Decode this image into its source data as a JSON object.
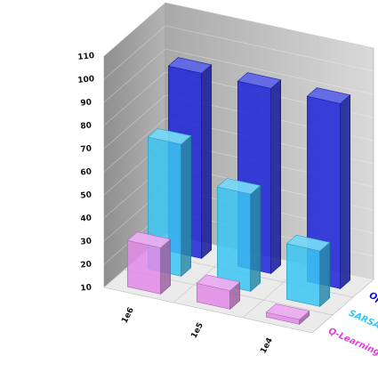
{
  "chart_data": {
    "type": "bar",
    "title": "",
    "xlabel": "",
    "ylabel": "",
    "ylim": [
      10,
      110
    ],
    "yticks": [
      10,
      20,
      30,
      40,
      50,
      60,
      70,
      80,
      90,
      100,
      110
    ],
    "categories": [
      "1e6",
      "1e5",
      "1e4"
    ],
    "series": [
      {
        "name": "Q-Learning",
        "values": [
          30,
          18,
          12
        ]
      },
      {
        "name": "SARSA",
        "values": [
          67,
          52,
          34
        ]
      },
      {
        "name": "Optimal",
        "values": [
          90,
          90,
          90
        ]
      }
    ],
    "grid": true,
    "colors": {
      "Q-Learning": "#e28ae8",
      "SARSA": "#3cc6f2",
      "Optimal": "#1c24d9"
    },
    "legend_colors": {
      "Q-Learning": "#e040d8",
      "SARSA": "#30c8f0",
      "Optimal": "#1010c8"
    }
  }
}
